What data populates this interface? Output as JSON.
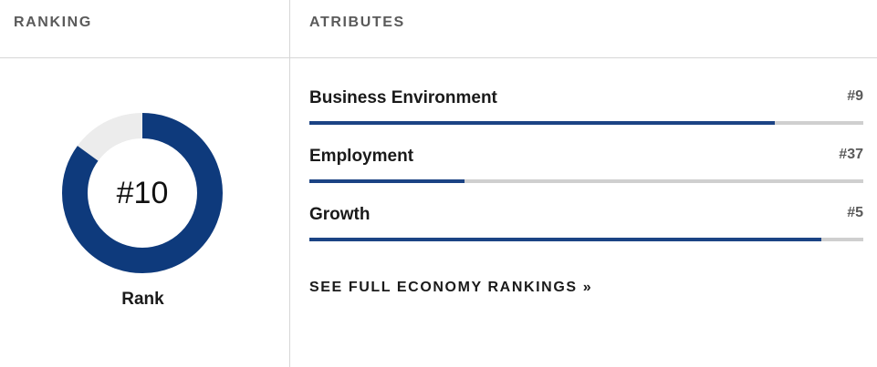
{
  "ranking": {
    "header": "RANKING",
    "rank_value": "#10",
    "rank_label": "Rank",
    "donut_fill_fraction": 0.85,
    "colors": {
      "fill": "#0e3a7c",
      "track": "#ececec"
    }
  },
  "attributes": {
    "header": "ATRIBUTES",
    "items": [
      {
        "name": "Business Environment",
        "rank": "#9",
        "progress": 0.84
      },
      {
        "name": "Employment",
        "rank": "#37",
        "progress": 0.28
      },
      {
        "name": "Growth",
        "rank": "#5",
        "progress": 0.925
      }
    ],
    "bar_color": "#1b4384",
    "track_color": "#cfcfcf"
  },
  "link": {
    "label": "SEE FULL ECONOMY RANKINGS »"
  }
}
